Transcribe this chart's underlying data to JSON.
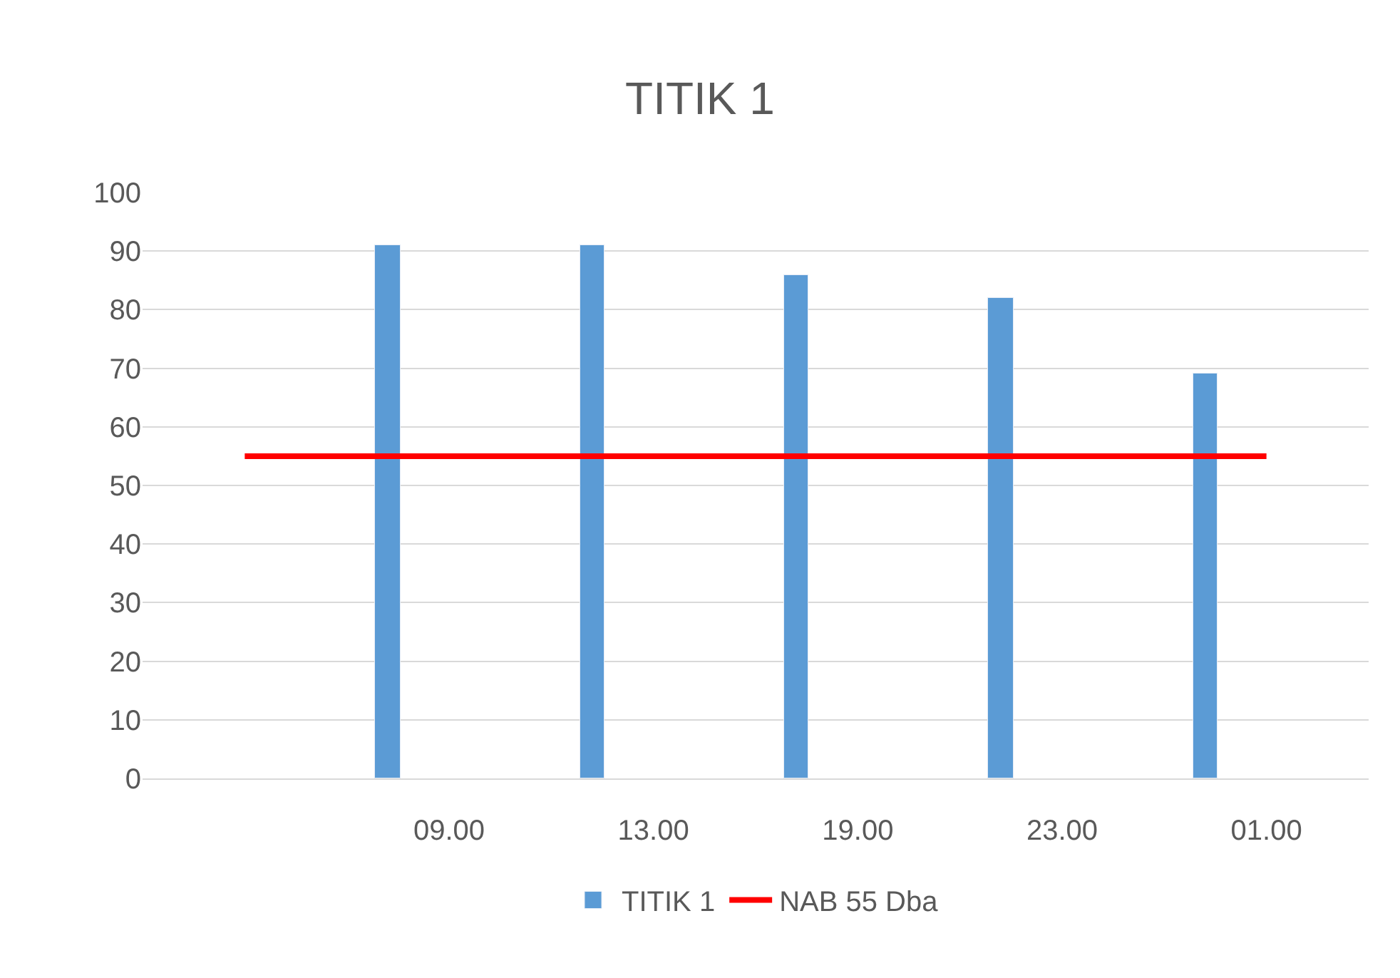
{
  "chart_data": {
    "type": "bar",
    "title": "TITIK 1",
    "categories": [
      null,
      "09.00",
      "13.00",
      "19.00",
      "23.00",
      "01.00"
    ],
    "series": [
      {
        "name": "TITIK 1",
        "color": "#5b9bd5",
        "values": [
          null,
          91,
          91,
          86,
          82,
          69
        ]
      },
      {
        "name": "NAB 55 Dba",
        "type": "line",
        "color": "#ff0000",
        "values": [
          55,
          55,
          55,
          55,
          55,
          55
        ]
      }
    ],
    "ylim": [
      0,
      100
    ],
    "yticks": [
      0,
      10,
      20,
      30,
      40,
      50,
      60,
      70,
      80,
      90,
      100
    ],
    "grid": "y",
    "legend": "bottom",
    "marker": "none",
    "line_style": "solid"
  }
}
